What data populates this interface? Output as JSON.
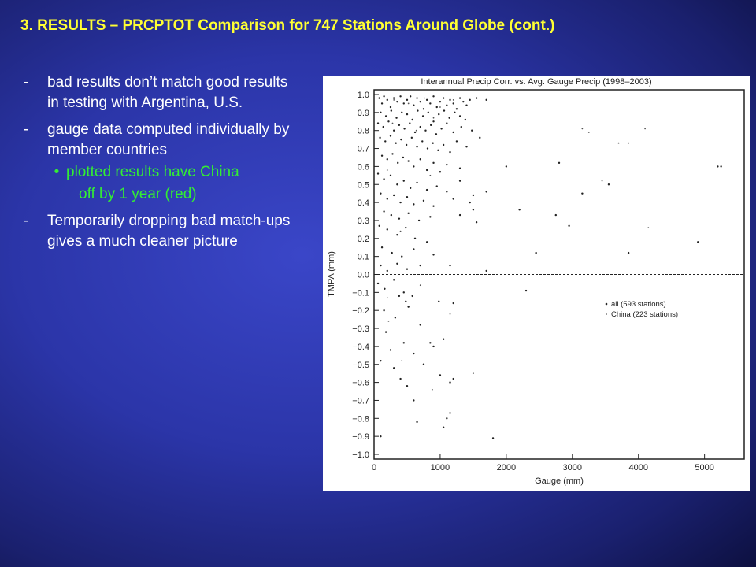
{
  "slide": {
    "title": "3.  RESULTS – PRCPTOT Comparison for 747 Stations Around Globe (cont.)",
    "bullets": [
      {
        "marker": "-",
        "text": "bad results don’t match good results in testing with Argentina, U.S."
      },
      {
        "marker": "-",
        "text": "gauge data computed individually by member countries"
      },
      {
        "marker": "-",
        "text": "Temporarily dropping bad match-ups gives a much cleaner picture"
      }
    ],
    "sub_bullet": {
      "marker": "•",
      "line1": "plotted results have China",
      "line2": "off by 1 year (red)"
    },
    "colors": {
      "title": "#ffff33",
      "text": "#ffffff",
      "sub_bullet": "#33ee33"
    }
  },
  "chart_data": {
    "type": "scatter",
    "title": "Interannual Precip Corr. vs. Avg. Gauge Precip (1998–2003)",
    "xlabel": "Gauge (mm)",
    "ylabel": "TMPA (mm)",
    "xlim": [
      0,
      5600
    ],
    "ylim": [
      -1.0,
      1.0
    ],
    "xticks": [
      0,
      1000,
      2000,
      3000,
      4000,
      5000
    ],
    "xtick_labels": [
      "0",
      "1000",
      "2000",
      "3000",
      "4000",
      "5000"
    ],
    "yticks": [
      1.0,
      0.9,
      0.8,
      0.7,
      0.6,
      0.5,
      0.4,
      0.3,
      0.2,
      0.1,
      0.0,
      -0.1,
      -0.2,
      -0.3,
      -0.4,
      -0.5,
      -0.6,
      -0.7,
      -0.8,
      -0.9,
      -1.0
    ],
    "ytick_labels": [
      "1.0",
      "0.9",
      "0.8",
      "0.7",
      "0.6",
      "0.5",
      "0.4",
      "0.3",
      "0.2",
      "0.1",
      "0.0",
      "−0.1",
      "−0.2",
      "−0.3",
      "−0.4",
      "−0.5",
      "−0.6",
      "−0.7",
      "−0.8",
      "−0.9",
      "−1.0"
    ],
    "reference_line": {
      "y": 0.0,
      "style": "dashed"
    },
    "legend": {
      "position": "lower-right",
      "entries": [
        "all (593 stations)",
        "China (223 stations)"
      ]
    },
    "grid": false,
    "series": [
      {
        "name": "all (593 stations)",
        "points": [
          [
            80,
            0.98
          ],
          [
            120,
            0.95
          ],
          [
            150,
            0.99
          ],
          [
            200,
            0.97
          ],
          [
            250,
            0.93
          ],
          [
            300,
            0.98
          ],
          [
            350,
            0.96
          ],
          [
            400,
            0.99
          ],
          [
            450,
            0.95
          ],
          [
            500,
            0.97
          ],
          [
            550,
            0.99
          ],
          [
            600,
            0.94
          ],
          [
            650,
            0.98
          ],
          [
            700,
            0.96
          ],
          [
            750,
            0.92
          ],
          [
            800,
            0.97
          ],
          [
            850,
            0.95
          ],
          [
            900,
            0.99
          ],
          [
            950,
            0.93
          ],
          [
            1000,
            0.96
          ],
          [
            1050,
            0.98
          ],
          [
            1100,
            0.94
          ],
          [
            1150,
            0.97
          ],
          [
            1200,
            0.95
          ],
          [
            1250,
            0.92
          ],
          [
            1300,
            0.98
          ],
          [
            1350,
            0.96
          ],
          [
            1400,
            0.94
          ],
          [
            1450,
            0.97
          ],
          [
            1550,
            0.98
          ],
          [
            1700,
            0.97
          ],
          [
            100,
            0.9
          ],
          [
            180,
            0.88
          ],
          [
            260,
            0.91
          ],
          [
            340,
            0.87
          ],
          [
            420,
            0.9
          ],
          [
            500,
            0.89
          ],
          [
            580,
            0.86
          ],
          [
            660,
            0.91
          ],
          [
            740,
            0.88
          ],
          [
            820,
            0.9
          ],
          [
            900,
            0.85
          ],
          [
            980,
            0.89
          ],
          [
            1060,
            0.91
          ],
          [
            1140,
            0.87
          ],
          [
            1220,
            0.9
          ],
          [
            1300,
            0.88
          ],
          [
            1380,
            0.86
          ],
          [
            60,
            0.84
          ],
          [
            140,
            0.82
          ],
          [
            220,
            0.85
          ],
          [
            300,
            0.8
          ],
          [
            380,
            0.83
          ],
          [
            460,
            0.81
          ],
          [
            540,
            0.84
          ],
          [
            620,
            0.79
          ],
          [
            700,
            0.82
          ],
          [
            780,
            0.8
          ],
          [
            860,
            0.83
          ],
          [
            940,
            0.78
          ],
          [
            1020,
            0.81
          ],
          [
            1100,
            0.84
          ],
          [
            1200,
            0.79
          ],
          [
            1320,
            0.82
          ],
          [
            1480,
            0.8
          ],
          [
            90,
            0.76
          ],
          [
            170,
            0.74
          ],
          [
            250,
            0.77
          ],
          [
            330,
            0.73
          ],
          [
            410,
            0.75
          ],
          [
            490,
            0.72
          ],
          [
            570,
            0.76
          ],
          [
            650,
            0.71
          ],
          [
            730,
            0.74
          ],
          [
            810,
            0.7
          ],
          [
            890,
            0.73
          ],
          [
            970,
            0.69
          ],
          [
            1050,
            0.72
          ],
          [
            1150,
            0.68
          ],
          [
            1250,
            0.74
          ],
          [
            1400,
            0.71
          ],
          [
            1600,
            0.76
          ],
          [
            120,
            0.66
          ],
          [
            200,
            0.64
          ],
          [
            280,
            0.67
          ],
          [
            360,
            0.62
          ],
          [
            440,
            0.65
          ],
          [
            520,
            0.63
          ],
          [
            600,
            0.6
          ],
          [
            700,
            0.64
          ],
          [
            800,
            0.58
          ],
          [
            900,
            0.62
          ],
          [
            1000,
            0.57
          ],
          [
            1100,
            0.61
          ],
          [
            1300,
            0.59
          ],
          [
            2000,
            0.6
          ],
          [
            2800,
            0.62
          ],
          [
            5200,
            0.6
          ],
          [
            5250,
            0.6
          ],
          [
            60,
            0.56
          ],
          [
            150,
            0.53
          ],
          [
            250,
            0.55
          ],
          [
            350,
            0.5
          ],
          [
            450,
            0.52
          ],
          [
            550,
            0.48
          ],
          [
            650,
            0.51
          ],
          [
            800,
            0.47
          ],
          [
            950,
            0.49
          ],
          [
            1100,
            0.46
          ],
          [
            1300,
            0.52
          ],
          [
            1500,
            0.44
          ],
          [
            1700,
            0.46
          ],
          [
            100,
            0.45
          ],
          [
            200,
            0.42
          ],
          [
            300,
            0.44
          ],
          [
            400,
            0.4
          ],
          [
            500,
            0.43
          ],
          [
            600,
            0.39
          ],
          [
            750,
            0.41
          ],
          [
            900,
            0.38
          ],
          [
            1200,
            0.42
          ],
          [
            1450,
            0.4
          ],
          [
            3150,
            0.45
          ],
          [
            3550,
            0.5
          ],
          [
            150,
            0.35
          ],
          [
            260,
            0.33
          ],
          [
            380,
            0.31
          ],
          [
            520,
            0.34
          ],
          [
            680,
            0.3
          ],
          [
            850,
            0.32
          ],
          [
            1300,
            0.33
          ],
          [
            1500,
            0.36
          ],
          [
            2200,
            0.36
          ],
          [
            2750,
            0.33
          ],
          [
            80,
            0.27
          ],
          [
            200,
            0.25
          ],
          [
            350,
            0.22
          ],
          [
            480,
            0.26
          ],
          [
            620,
            0.2
          ],
          [
            800,
            0.18
          ],
          [
            1550,
            0.29
          ],
          [
            2950,
            0.27
          ],
          [
            4900,
            0.18
          ],
          [
            120,
            0.15
          ],
          [
            270,
            0.12
          ],
          [
            420,
            0.1
          ],
          [
            600,
            0.14
          ],
          [
            900,
            0.11
          ],
          [
            2450,
            0.12
          ],
          [
            3850,
            0.12
          ],
          [
            100,
            0.05
          ],
          [
            200,
            0.02
          ],
          [
            350,
            0.06
          ],
          [
            500,
            0.03
          ],
          [
            700,
            0.05
          ],
          [
            1150,
            0.05
          ],
          [
            1700,
            0.02
          ],
          [
            60,
            -0.05
          ],
          [
            160,
            -0.08
          ],
          [
            300,
            -0.03
          ],
          [
            450,
            -0.1
          ],
          [
            580,
            -0.12
          ],
          [
            380,
            -0.12
          ],
          [
            480,
            -0.15
          ],
          [
            980,
            -0.15
          ],
          [
            1200,
            -0.16
          ],
          [
            2300,
            -0.09
          ],
          [
            150,
            -0.2
          ],
          [
            320,
            -0.24
          ],
          [
            520,
            -0.18
          ],
          [
            700,
            -0.28
          ],
          [
            180,
            -0.32
          ],
          [
            450,
            -0.38
          ],
          [
            850,
            -0.38
          ],
          [
            1050,
            -0.36
          ],
          [
            250,
            -0.42
          ],
          [
            600,
            -0.44
          ],
          [
            900,
            -0.4
          ],
          [
            100,
            -0.48
          ],
          [
            300,
            -0.52
          ],
          [
            750,
            -0.5
          ],
          [
            400,
            -0.58
          ],
          [
            1000,
            -0.56
          ],
          [
            500,
            -0.62
          ],
          [
            1150,
            -0.6
          ],
          [
            1200,
            -0.58
          ],
          [
            600,
            -0.7
          ],
          [
            1150,
            -0.77
          ],
          [
            1100,
            -0.8
          ],
          [
            1050,
            -0.85
          ],
          [
            650,
            -0.82
          ],
          [
            1800,
            -0.91
          ],
          [
            100,
            -0.9
          ]
        ]
      },
      {
        "name": "China (223 stations)",
        "points": [
          [
            300,
            0.97
          ],
          [
            520,
            0.95
          ],
          [
            760,
            0.98
          ],
          [
            1000,
            0.93
          ],
          [
            1200,
            0.97
          ],
          [
            280,
            0.84
          ],
          [
            640,
            0.8
          ],
          [
            900,
            0.87
          ],
          [
            3150,
            0.81
          ],
          [
            3250,
            0.79
          ],
          [
            3700,
            0.73
          ],
          [
            3850,
            0.73
          ],
          [
            4100,
            0.81
          ],
          [
            200,
            0.58
          ],
          [
            850,
            0.55
          ],
          [
            3450,
            0.52
          ],
          [
            400,
            0.24
          ],
          [
            4150,
            0.26
          ],
          [
            200,
            -0.13
          ],
          [
            700,
            -0.06
          ],
          [
            1150,
            -0.22
          ],
          [
            420,
            -0.48
          ],
          [
            220,
            -0.26
          ],
          [
            880,
            -0.64
          ],
          [
            1500,
            -0.55
          ]
        ]
      }
    ]
  }
}
